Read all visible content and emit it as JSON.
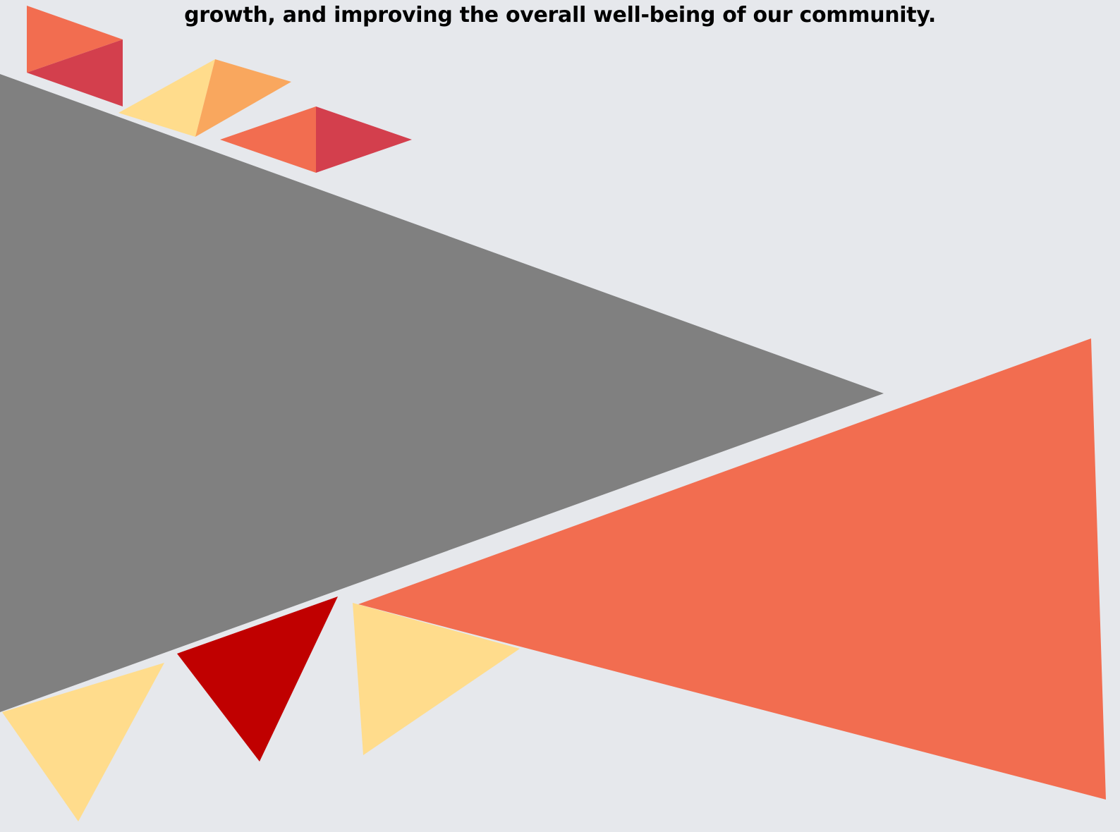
{
  "document": {
    "tagline": "growth, and improving the overall well-being of our community."
  },
  "palette": {
    "background": "#e6e8ec",
    "gray": "#808080",
    "coral": "#f26d50",
    "crimson": "#d33f4d",
    "light_yellow": "#ffdc8c",
    "light_orange": "#f9a75e",
    "dark_red": "#c00000",
    "text": "#000000"
  }
}
